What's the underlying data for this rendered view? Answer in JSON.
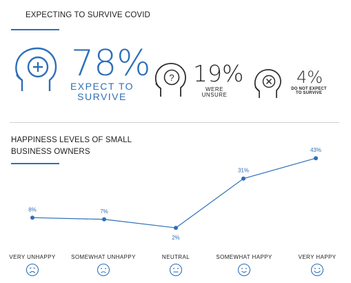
{
  "section1": {
    "title": "EXPECTING TO SURVIVE COVID",
    "stats": [
      {
        "value": "78%",
        "label_line1": "EXPECT TO",
        "label_line2": "SURVIVE",
        "icon": "head-plus-icon",
        "color": "#2e6fb7"
      },
      {
        "value": "19%",
        "label_line1": "WERE",
        "label_line2": "UNSURE",
        "icon": "head-question-icon",
        "color": "#2b2b2b"
      },
      {
        "value": "4%",
        "label_line1": "DO NOT EXPECT",
        "label_line2": "TO SURVIVE",
        "icon": "head-x-icon",
        "color": "#2b2b2b"
      }
    ]
  },
  "section2": {
    "title_line1": "HAPPINESS LEVELS OF SMALL",
    "title_line2": "BUSINESS OWNERS"
  },
  "colors": {
    "accent": "#2e6fb7",
    "text": "#1f1f1f",
    "divider": "#cfcfcf"
  },
  "chart_data": {
    "type": "line",
    "categories": [
      "VERY UNHAPPY",
      "SOMEWHAT UNHAPPY",
      "NEUTRAL",
      "SOMEWHAT HAPPY",
      "VERY HAPPY"
    ],
    "series": [
      {
        "values": [
          8,
          7,
          2,
          31,
          43
        ]
      }
    ],
    "data_labels": [
      "8%",
      "7%",
      "2%",
      "31%",
      "43%"
    ],
    "icons": [
      "very-sad-face-icon",
      "sad-face-icon",
      "neutral-face-icon",
      "smile-face-icon",
      "big-smile-face-icon"
    ],
    "grid": false,
    "legend": "none",
    "color": "#2e6fb7"
  }
}
